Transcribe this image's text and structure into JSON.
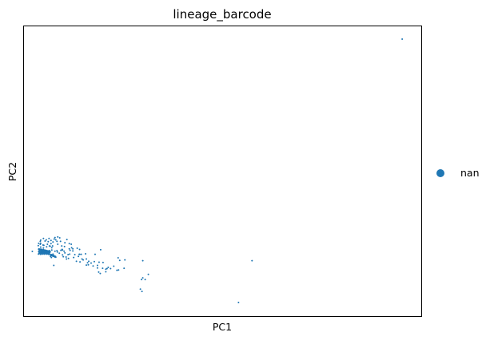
{
  "chart_data": {
    "type": "scatter",
    "title": "lineage_barcode",
    "xlabel": "PC1",
    "ylabel": "PC2",
    "xlim": [
      0,
      100
    ],
    "ylim": [
      0,
      100
    ],
    "grid": false,
    "x_ticks_shown": false,
    "y_ticks_shown": false,
    "legend": {
      "position": "right",
      "entries": [
        {
          "label": "nan",
          "color": "#1f77b4"
        }
      ]
    },
    "series": [
      {
        "name": "nan",
        "color": "#1f77b4",
        "points": [
          [
            95.2,
            95.6
          ],
          [
            57.4,
            19.1
          ],
          [
            54.0,
            4.7
          ],
          [
            31.3,
            14.4
          ],
          [
            30.5,
            12.6
          ],
          [
            29.6,
            12.6
          ],
          [
            29.3,
            9.3
          ],
          [
            29.7,
            8.5
          ],
          [
            29.9,
            19.1
          ],
          [
            29.9,
            13.2
          ],
          [
            23.7,
            20.1
          ],
          [
            24.1,
            19.2
          ],
          [
            25.4,
            19.4
          ],
          [
            25.2,
            16.5
          ],
          [
            23.8,
            15.9
          ],
          [
            21.8,
            16.4
          ],
          [
            21.2,
            16.8
          ],
          [
            20.6,
            16.2
          ],
          [
            19.8,
            16.5
          ],
          [
            23.4,
            15.8
          ],
          [
            22.6,
            17.2
          ],
          [
            18.5,
            17.5
          ],
          [
            18.9,
            18.6
          ],
          [
            19.9,
            18.5
          ],
          [
            20.9,
            16.4
          ],
          [
            18.8,
            15.2
          ],
          [
            19.2,
            14.7
          ],
          [
            20.6,
            15.3
          ],
          [
            18.5,
            16.6
          ],
          [
            17.7,
            18.8
          ],
          [
            17.4,
            17.3
          ],
          [
            16.3,
            18.9
          ],
          [
            16.9,
            18.3
          ],
          [
            15.7,
            19.7
          ],
          [
            14.6,
            19.7
          ],
          [
            14.0,
            21.3
          ],
          [
            13.7,
            20.6
          ],
          [
            12.8,
            21.2
          ],
          [
            14.1,
            18.7
          ],
          [
            13.2,
            18.9
          ],
          [
            12.5,
            20.2
          ],
          [
            11.5,
            21.4
          ],
          [
            11.6,
            22.7
          ],
          [
            11.2,
            19.9
          ],
          [
            10.7,
            19.7
          ],
          [
            10.3,
            21.8
          ],
          [
            9.7,
            21.1
          ],
          [
            9.3,
            22.7
          ],
          [
            9.9,
            20.5
          ],
          [
            8.9,
            21.7
          ],
          [
            8.4,
            22.1
          ],
          [
            8.0,
            20.3
          ],
          [
            7.8,
            22.4
          ],
          [
            8.3,
            22.6
          ],
          [
            7.3,
            21.4
          ],
          [
            6.9,
            20.2
          ],
          [
            6.7,
            20.6
          ],
          [
            7.0,
            22.8
          ],
          [
            6.2,
            21.5
          ],
          [
            6.4,
            22.6
          ],
          [
            5.7,
            23.9
          ],
          [
            5.3,
            21.7
          ],
          [
            5.8,
            22.1
          ],
          [
            4.9,
            23.5
          ],
          [
            4.6,
            22.7
          ],
          [
            4.2,
            23.8
          ],
          [
            3.8,
            23.2
          ],
          [
            7.0,
            23.6
          ],
          [
            6.6,
            24.1
          ],
          [
            9.6,
            23.0
          ],
          [
            11.4,
            23.2
          ],
          [
            12.3,
            22.5
          ],
          [
            10.1,
            22.4
          ],
          [
            12.0,
            23.6
          ],
          [
            13.4,
            23.4
          ],
          [
            11.4,
            25.0
          ],
          [
            8.5,
            24.8
          ],
          [
            11.9,
            24.8
          ],
          [
            7.6,
            26.6
          ],
          [
            10.8,
            26.4
          ],
          [
            9.2,
            25.8
          ],
          [
            10.3,
            25.3
          ],
          [
            8.3,
            25.8
          ],
          [
            9.0,
            27.0
          ],
          [
            8.0,
            26.3
          ],
          [
            7.8,
            27.1
          ],
          [
            8.5,
            27.3
          ],
          [
            7.3,
            25.6
          ],
          [
            7.2,
            24.2
          ],
          [
            6.8,
            25.0
          ],
          [
            6.8,
            26.1
          ],
          [
            5.9,
            24.8
          ],
          [
            4.8,
            24.5
          ],
          [
            6.1,
            25.7
          ],
          [
            5.3,
            25.9
          ],
          [
            5.6,
            26.3
          ],
          [
            4.2,
            25.1
          ],
          [
            4.2,
            26.2
          ],
          [
            5.0,
            24.4
          ],
          [
            3.7,
            25.1
          ],
          [
            3.6,
            24.3
          ],
          [
            4.9,
            26.8
          ],
          [
            6.3,
            26.8
          ],
          [
            4.1,
            25.8
          ],
          [
            4.1,
            24.8
          ],
          [
            6.4,
            24.2
          ],
          [
            9.5,
            24.2
          ],
          [
            9.7,
            22.8
          ],
          [
            12.3,
            23.2
          ],
          [
            13.9,
            21.3
          ],
          [
            10.6,
            20.4
          ],
          [
            11.1,
            21.2
          ],
          [
            15.5,
            21.5
          ],
          [
            16.0,
            18.4
          ],
          [
            17.9,
            21.3
          ],
          [
            14.4,
            21.3
          ],
          [
            16.2,
            17.7
          ],
          [
            19.3,
            22.9
          ],
          [
            10.2,
            24.0
          ],
          [
            14.0,
            23.0
          ],
          [
            15.7,
            17.6
          ],
          [
            14.9,
            19.4
          ],
          [
            7.5,
            17.5
          ],
          [
            2.1,
            22.3
          ],
          [
            3.65,
            21.4
          ],
          [
            3.75,
            21.6
          ],
          [
            3.86,
            21.8
          ],
          [
            3.97,
            21.7
          ],
          [
            4.08,
            21.5
          ],
          [
            4.19,
            21.3
          ],
          [
            4.3,
            21.6
          ],
          [
            4.41,
            21.9
          ],
          [
            4.52,
            21.8
          ],
          [
            4.63,
            21.4
          ],
          [
            4.74,
            21.7
          ],
          [
            4.85,
            21.5
          ],
          [
            4.96,
            21.6
          ],
          [
            5.07,
            21.8
          ],
          [
            5.18,
            21.4
          ],
          [
            5.29,
            21.6
          ],
          [
            5.4,
            21.9
          ],
          [
            5.51,
            21.7
          ],
          [
            5.62,
            21.5
          ],
          [
            5.73,
            21.4
          ],
          [
            5.84,
            21.8
          ],
          [
            5.95,
            21.6
          ],
          [
            6.06,
            21.5
          ],
          [
            6.17,
            21.3
          ],
          [
            6.28,
            21.7
          ],
          [
            6.39,
            21.5
          ],
          [
            6.5,
            21.4
          ],
          [
            6.61,
            21.2
          ],
          [
            6.72,
            21.0
          ],
          [
            6.83,
            20.9
          ],
          [
            6.94,
            21.2
          ],
          [
            7.05,
            20.9
          ],
          [
            7.16,
            20.8
          ],
          [
            7.27,
            20.7
          ],
          [
            7.38,
            21.0
          ],
          [
            7.49,
            20.6
          ],
          [
            7.6,
            20.8
          ],
          [
            7.71,
            20.5
          ],
          [
            7.82,
            20.4
          ],
          [
            7.93,
            20.6
          ],
          [
            3.7,
            23.1
          ],
          [
            3.8,
            22.9
          ],
          [
            3.9,
            23.0
          ],
          [
            4.0,
            22.8
          ],
          [
            4.1,
            22.9
          ],
          [
            4.2,
            23.1
          ],
          [
            4.3,
            22.7
          ],
          [
            4.4,
            22.9
          ],
          [
            4.5,
            23.0
          ],
          [
            4.6,
            22.8
          ],
          [
            4.7,
            22.6
          ],
          [
            4.8,
            22.8
          ],
          [
            4.9,
            22.9
          ],
          [
            5.0,
            22.7
          ],
          [
            5.1,
            22.5
          ],
          [
            5.2,
            22.8
          ],
          [
            5.3,
            22.6
          ],
          [
            5.4,
            22.4
          ],
          [
            5.5,
            22.7
          ],
          [
            5.6,
            22.5
          ],
          [
            5.7,
            22.3
          ],
          [
            5.8,
            22.6
          ],
          [
            5.9,
            22.4
          ],
          [
            6.0,
            22.2
          ],
          [
            6.1,
            22.5
          ],
          [
            6.2,
            22.3
          ],
          [
            6.3,
            22.1
          ],
          [
            6.4,
            22.3
          ],
          [
            6.5,
            22.0
          ],
          [
            6.6,
            22.2
          ],
          [
            3.7,
            22.2
          ],
          [
            3.8,
            22.4
          ],
          [
            3.9,
            22.1
          ],
          [
            4.0,
            22.3
          ],
          [
            4.1,
            22.0
          ],
          [
            4.2,
            22.2
          ],
          [
            4.3,
            22.4
          ],
          [
            4.4,
            22.1
          ],
          [
            4.5,
            22.3
          ],
          [
            4.6,
            22.0
          ],
          [
            4.7,
            22.2
          ],
          [
            4.8,
            22.3
          ],
          [
            4.9,
            22.1
          ],
          [
            5.0,
            22.2
          ],
          [
            5.1,
            22.0
          ],
          [
            5.2,
            22.2
          ],
          [
            5.3,
            22.1
          ],
          [
            5.4,
            21.9
          ],
          [
            5.5,
            22.1
          ],
          [
            5.6,
            21.9
          ],
          [
            5.7,
            22.0
          ],
          [
            5.8,
            21.8
          ],
          [
            5.9,
            22.0
          ],
          [
            6.0,
            21.8
          ]
        ]
      }
    ]
  }
}
